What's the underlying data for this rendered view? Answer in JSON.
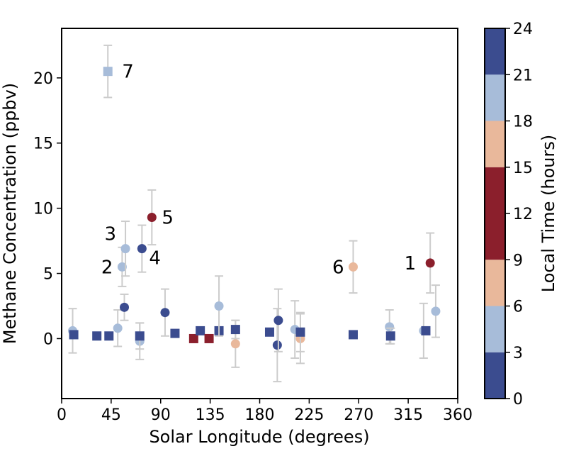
{
  "chart_data": {
    "type": "scatter",
    "xlabel": "Solar Longitude (degrees)",
    "ylabel": "Methane Concentration (ppbv)",
    "xlim": [
      0,
      360
    ],
    "ylim": [
      -4.6,
      23.8
    ],
    "xticks": [
      0,
      45,
      90,
      135,
      180,
      225,
      270,
      315,
      360
    ],
    "yticks": [
      0,
      5,
      10,
      15,
      20
    ],
    "grid": false,
    "colorbar": {
      "label": "Local Time (hours)",
      "ticks": [
        0,
        3,
        6,
        9,
        12,
        15,
        18,
        21,
        24
      ],
      "bands": [
        {
          "from": 0,
          "to": 3,
          "color": "#3b4c8f"
        },
        {
          "from": 3,
          "to": 6,
          "color": "#a7bcd9"
        },
        {
          "from": 6,
          "to": 9,
          "color": "#e9b89b"
        },
        {
          "from": 9,
          "to": 15,
          "color": "#8b1f2c"
        },
        {
          "from": 15,
          "to": 18,
          "color": "#e9b89b"
        },
        {
          "from": 18,
          "to": 21,
          "color": "#a7bcd9"
        },
        {
          "from": 21,
          "to": 24,
          "color": "#3b4c8f"
        }
      ]
    },
    "points": [
      {
        "x": 10,
        "y": 0.6,
        "err": 1.7,
        "marker": "circle",
        "color": "#a7bcd9"
      },
      {
        "x": 11,
        "y": 0.3,
        "err": null,
        "marker": "square",
        "color": "#3b4c8f"
      },
      {
        "x": 32,
        "y": 0.2,
        "err": null,
        "marker": "square",
        "color": "#3b4c8f"
      },
      {
        "x": 43,
        "y": 0.2,
        "err": null,
        "marker": "square",
        "color": "#3b4c8f"
      },
      {
        "x": 42,
        "y": 20.5,
        "err": 2.0,
        "marker": "square",
        "color": "#a7bcd9",
        "label": "7"
      },
      {
        "x": 51,
        "y": 0.8,
        "err": 1.4,
        "marker": "circle",
        "color": "#a7bcd9"
      },
      {
        "x": 55,
        "y": 5.5,
        "err": 1.5,
        "marker": "circle",
        "color": "#a7bcd9",
        "label": "2"
      },
      {
        "x": 57,
        "y": 2.4,
        "err": 1.0,
        "marker": "circle",
        "color": "#3b4c8f"
      },
      {
        "x": 58,
        "y": 6.9,
        "err": 2.1,
        "marker": "circle",
        "color": "#a7bcd9",
        "label": "3"
      },
      {
        "x": 71,
        "y": -0.2,
        "err": 1.4,
        "marker": "circle",
        "color": "#a7bcd9"
      },
      {
        "x": 71,
        "y": 0.2,
        "err": 1.0,
        "marker": "square",
        "color": "#3b4c8f"
      },
      {
        "x": 73,
        "y": 6.9,
        "err": 1.8,
        "marker": "circle",
        "color": "#3b4c8f",
        "label": "4"
      },
      {
        "x": 82,
        "y": 9.3,
        "err": 2.1,
        "marker": "circle",
        "color": "#8b1f2c",
        "label": "5"
      },
      {
        "x": 94,
        "y": 2.0,
        "err": 1.8,
        "marker": "circle",
        "color": "#3b4c8f"
      },
      {
        "x": 103,
        "y": 0.4,
        "err": null,
        "marker": "square",
        "color": "#3b4c8f"
      },
      {
        "x": 120,
        "y": 0.0,
        "err": null,
        "marker": "square",
        "color": "#8b1f2c"
      },
      {
        "x": 126,
        "y": 0.6,
        "err": null,
        "marker": "square",
        "color": "#3b4c8f"
      },
      {
        "x": 134,
        "y": 0.0,
        "err": null,
        "marker": "square",
        "color": "#8b1f2c"
      },
      {
        "x": 143,
        "y": 0.6,
        "err": null,
        "marker": "square",
        "color": "#3b4c8f"
      },
      {
        "x": 143,
        "y": 2.5,
        "err": 2.3,
        "marker": "circle",
        "color": "#a7bcd9"
      },
      {
        "x": 158,
        "y": -0.4,
        "err": 1.8,
        "marker": "circle",
        "color": "#e9b89b"
      },
      {
        "x": 158,
        "y": 0.7,
        "err": 0.7,
        "marker": "square",
        "color": "#3b4c8f"
      },
      {
        "x": 189,
        "y": 0.5,
        "err": null,
        "marker": "square",
        "color": "#3b4c8f"
      },
      {
        "x": 196,
        "y": -0.5,
        "err": 2.8,
        "marker": "circle",
        "color": "#3b4c8f"
      },
      {
        "x": 197,
        "y": 1.4,
        "err": 2.4,
        "marker": "circle",
        "color": "#3b4c8f"
      },
      {
        "x": 212,
        "y": 0.7,
        "err": 2.2,
        "marker": "circle",
        "color": "#a7bcd9"
      },
      {
        "x": 217,
        "y": 0.0,
        "err": 1.9,
        "marker": "circle",
        "color": "#e9b89b"
      },
      {
        "x": 217,
        "y": 0.5,
        "err": 1.5,
        "marker": "square",
        "color": "#3b4c8f"
      },
      {
        "x": 265,
        "y": 5.5,
        "err": 2.0,
        "marker": "circle",
        "color": "#e9b89b",
        "label": "6"
      },
      {
        "x": 265,
        "y": 0.3,
        "err": null,
        "marker": "square",
        "color": "#3b4c8f"
      },
      {
        "x": 298,
        "y": 0.9,
        "err": 1.3,
        "marker": "circle",
        "color": "#a7bcd9"
      },
      {
        "x": 299,
        "y": 0.2,
        "err": 0.6,
        "marker": "square",
        "color": "#3b4c8f"
      },
      {
        "x": 329,
        "y": 0.6,
        "err": 2.1,
        "marker": "circle",
        "color": "#a7bcd9"
      },
      {
        "x": 331,
        "y": 0.6,
        "err": null,
        "marker": "square",
        "color": "#3b4c8f"
      },
      {
        "x": 335,
        "y": 5.8,
        "err": 2.3,
        "marker": "circle",
        "color": "#8b1f2c",
        "label": "1"
      },
      {
        "x": 340,
        "y": 2.1,
        "err": 2.0,
        "marker": "circle",
        "color": "#a7bcd9"
      }
    ]
  }
}
